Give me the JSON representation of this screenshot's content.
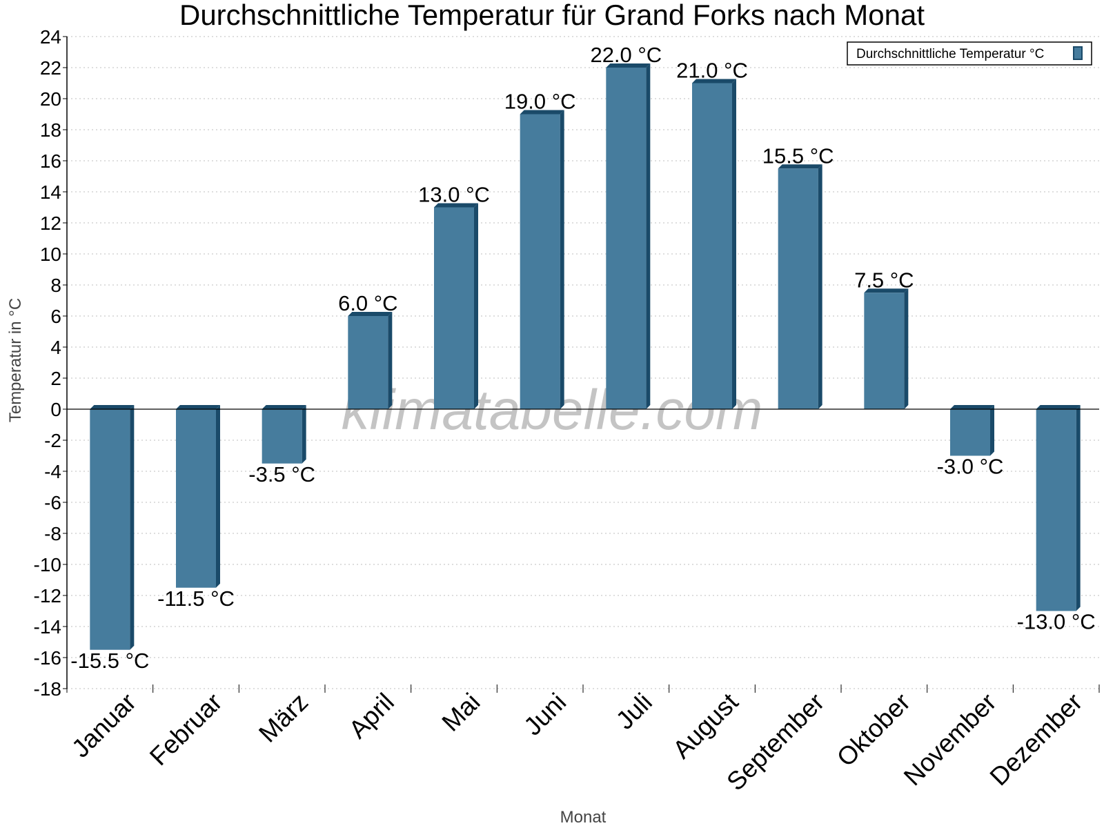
{
  "chart_data": {
    "type": "bar",
    "title": "Durchschnittliche Temperatur für Grand Forks nach Monat",
    "xlabel": "Monat",
    "ylabel": "Temperatur in °C",
    "categories": [
      "Januar",
      "Februar",
      "März",
      "April",
      "Mai",
      "Juni",
      "Juli",
      "August",
      "September",
      "Oktober",
      "November",
      "Dezember"
    ],
    "series": [
      {
        "name": "Durchschnittliche Temperatur °C",
        "values": [
          -15.5,
          -11.5,
          -3.5,
          6.0,
          13.0,
          19.0,
          22.0,
          21.0,
          15.5,
          7.5,
          -3.0,
          -13.0
        ],
        "labels": [
          "-15.5 °C",
          "-11.5 °C",
          "-3.5 °C",
          "6.0 °C",
          "13.0 °C",
          "19.0 °C",
          "22.0 °C",
          "21.0 °C",
          "15.5 °C",
          "7.5 °C",
          "-3.0 °C",
          "-13.0 °C"
        ],
        "color": "#467c9d",
        "edge_color": "#1a4a69"
      }
    ],
    "ylim": [
      -18,
      24
    ],
    "yticks": [
      24,
      22,
      20,
      18,
      16,
      14,
      12,
      10,
      8,
      6,
      4,
      2,
      0,
      -2,
      -4,
      -6,
      -8,
      -10,
      -12,
      -14,
      -16,
      -18
    ],
    "grid": true,
    "legend_position": "top-right",
    "watermark": "klimatabelle.com"
  }
}
